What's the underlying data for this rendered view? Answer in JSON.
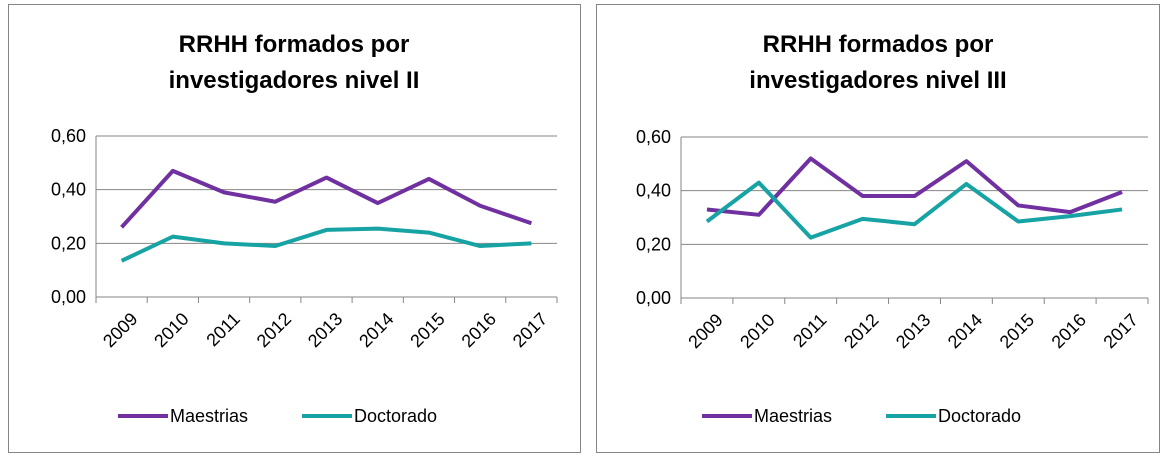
{
  "chart_data": [
    {
      "type": "line",
      "title": [
        "RRHH formados por",
        "investigadores  nivel II"
      ],
      "categories": [
        "2009",
        "2010",
        "2011",
        "2012",
        "2013",
        "2014",
        "2015",
        "2016",
        "2017"
      ],
      "series": [
        {
          "name": "Maestrias",
          "color": "#7030a0",
          "values": [
            0.26,
            0.47,
            0.39,
            0.355,
            0.445,
            0.35,
            0.44,
            0.34,
            0.275
          ]
        },
        {
          "name": "Doctorado",
          "color": "#17a3a3",
          "values": [
            0.135,
            0.225,
            0.2,
            0.19,
            0.25,
            0.255,
            0.24,
            0.19,
            0.2
          ]
        }
      ],
      "ylim": [
        0,
        0.6
      ],
      "yticks": [
        {
          "value": 0,
          "label": "0,00"
        },
        {
          "value": 0.2,
          "label": "0,20"
        },
        {
          "value": 0.4,
          "label": "0,40"
        },
        {
          "value": 0.6,
          "label": "0,60"
        }
      ],
      "grid": true,
      "legend": "bottom"
    },
    {
      "type": "line",
      "title": [
        "RRHH formados por",
        "investigadores nivel III"
      ],
      "categories": [
        "2009",
        "2010",
        "2011",
        "2012",
        "2013",
        "2014",
        "2015",
        "2016",
        "2017"
      ],
      "series": [
        {
          "name": "Maestrias",
          "color": "#7030a0",
          "values": [
            0.33,
            0.31,
            0.52,
            0.38,
            0.38,
            0.51,
            0.345,
            0.32,
            0.395
          ]
        },
        {
          "name": "Doctorado",
          "color": "#17a3a3",
          "values": [
            0.285,
            0.43,
            0.225,
            0.295,
            0.275,
            0.425,
            0.285,
            0.305,
            0.33
          ]
        }
      ],
      "ylim": [
        0,
        0.6
      ],
      "yticks": [
        {
          "value": 0,
          "label": "0,00"
        },
        {
          "value": 0.2,
          "label": "0,20"
        },
        {
          "value": 0.4,
          "label": "0,40"
        },
        {
          "value": 0.6,
          "label": "0,60"
        }
      ],
      "grid": true,
      "legend": "bottom"
    }
  ]
}
